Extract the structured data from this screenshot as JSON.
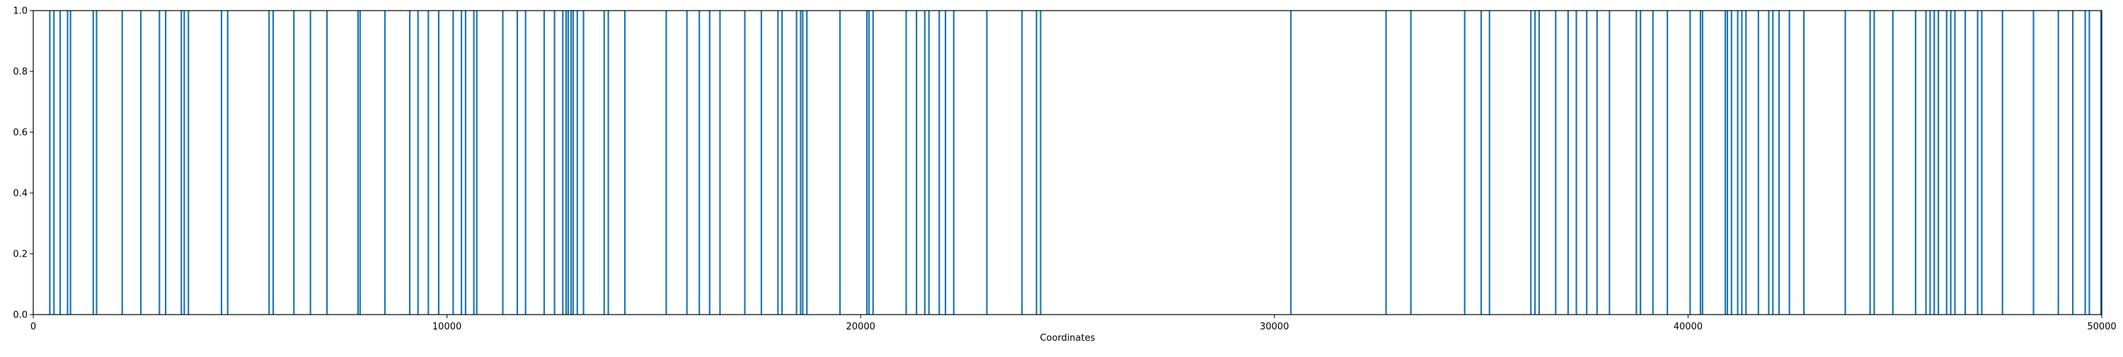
{
  "chart_data": {
    "type": "bar",
    "title": "",
    "xlabel": "Coordinates",
    "ylabel": "",
    "xlim": [
      0,
      50000
    ],
    "ylim": [
      0,
      1.0
    ],
    "grid": false,
    "color": "#1f77b4",
    "xticks": [
      0,
      10000,
      20000,
      30000,
      40000,
      50000
    ],
    "xtick_labels": [
      "0",
      "10000",
      "20000",
      "30000",
      "40000",
      "50000"
    ],
    "yticks": [
      0,
      0.2,
      0.4,
      0.6,
      0.8,
      1.0
    ],
    "ytick_labels": [
      "0.0",
      "0.2",
      "0.4",
      "0.6",
      "0.8",
      "1.0"
    ],
    "x": [
      400,
      500,
      650,
      830,
      900,
      1450,
      1530,
      2150,
      2600,
      3050,
      3200,
      3580,
      3650,
      3750,
      4550,
      4700,
      5700,
      5800,
      6300,
      6700,
      7100,
      7850,
      7900,
      8500,
      9100,
      9300,
      9550,
      9800,
      10150,
      10350,
      10450,
      10650,
      10720,
      11350,
      11700,
      11900,
      12350,
      12600,
      12800,
      12880,
      12930,
      13000,
      13050,
      13150,
      13300,
      13800,
      13900,
      14300,
      15300,
      15800,
      16100,
      16350,
      16600,
      17200,
      17600,
      18000,
      18100,
      18450,
      18550,
      18600,
      18700,
      19500,
      20150,
      20200,
      20300,
      21100,
      21350,
      21550,
      21650,
      21900,
      22050,
      22250,
      23050,
      23900,
      24250,
      24350,
      30400,
      32700,
      33300,
      34600,
      35000,
      35200,
      36200,
      36300,
      36400,
      36800,
      37100,
      37300,
      37550,
      37800,
      38100,
      38750,
      38850,
      39150,
      39500,
      40050,
      40300,
      40350,
      40900,
      40950,
      41050,
      41200,
      41300,
      41400,
      41700,
      41950,
      42050,
      42200,
      42450,
      42800,
      43800,
      44400,
      44500,
      44950,
      45500,
      45750,
      45850,
      45950,
      46050,
      46250,
      46350,
      46450,
      46700,
      47000,
      47100,
      47600,
      48350,
      48950,
      49300,
      49600,
      49700,
      49980
    ],
    "y": [
      1,
      1,
      1,
      1,
      1,
      1,
      1,
      1,
      1,
      1,
      1,
      1,
      1,
      1,
      1,
      1,
      1,
      1,
      1,
      1,
      1,
      1,
      1,
      1,
      1,
      1,
      1,
      1,
      1,
      1,
      1,
      1,
      1,
      1,
      1,
      1,
      1,
      1,
      1,
      1,
      1,
      1,
      1,
      1,
      1,
      1,
      1,
      1,
      1,
      1,
      1,
      1,
      1,
      1,
      1,
      1,
      1,
      1,
      1,
      1,
      1,
      1,
      1,
      1,
      1,
      1,
      1,
      1,
      1,
      1,
      1,
      1,
      1,
      1,
      1,
      1,
      1,
      1,
      1,
      1,
      1,
      1,
      1,
      1,
      1,
      1,
      1,
      1,
      1,
      1,
      1,
      1,
      1,
      1,
      1,
      1,
      1,
      1,
      1,
      1,
      1,
      1,
      1,
      1,
      1,
      1,
      1,
      1,
      1,
      1,
      1,
      1,
      1,
      1,
      1,
      1,
      1,
      1,
      1,
      1,
      1,
      1,
      1,
      1,
      1,
      1,
      1,
      1,
      1,
      1,
      1,
      1
    ]
  }
}
